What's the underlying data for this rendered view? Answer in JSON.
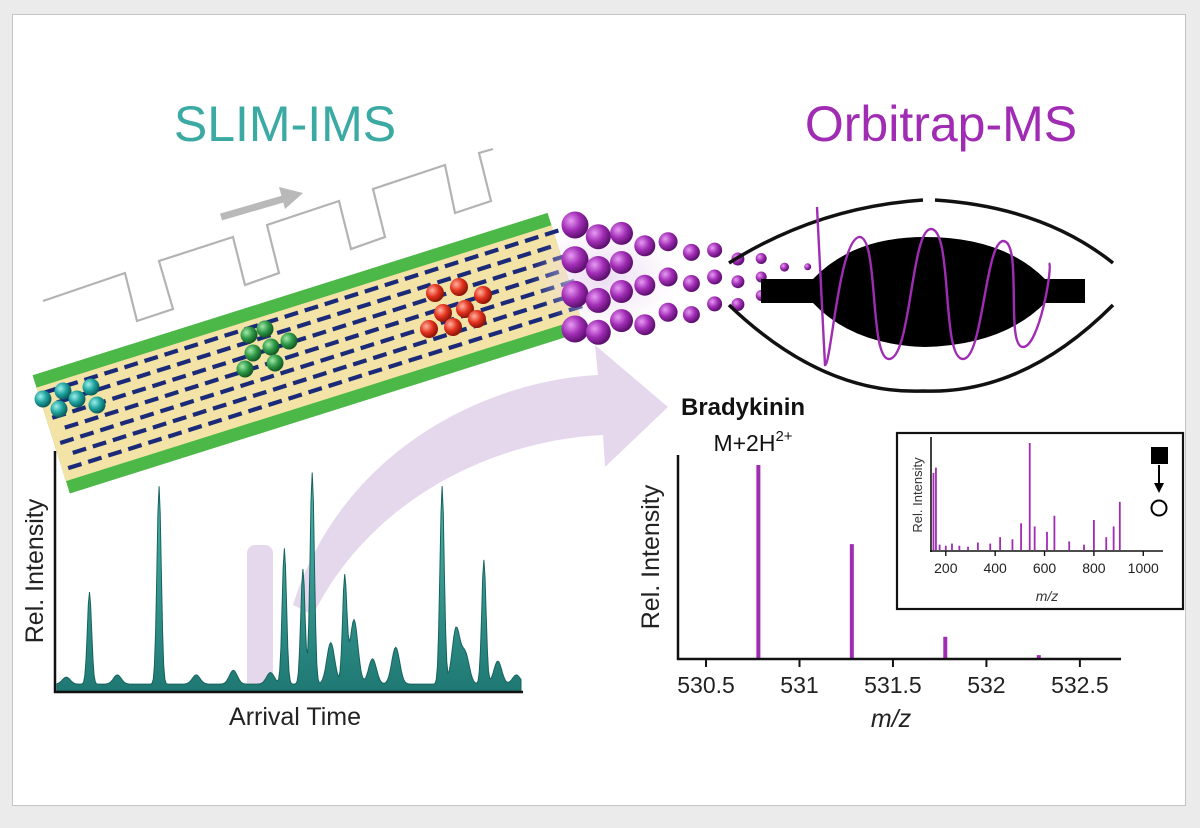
{
  "titles": {
    "left": "SLIM-IMS",
    "right": "Orbitrap-MS"
  },
  "colors": {
    "teal": "#3aaaa3",
    "purple": "#a02cb4",
    "green_rail": "#4cb848",
    "yellow_track": "#f3e3a6",
    "electrode": "#1a2a78",
    "ion_teal": "#22a6a4",
    "ion_green": "#2e9a48",
    "ion_red": "#e4331f",
    "highlight": "#e6d8ec"
  },
  "imsChart": {
    "ylabel": "Rel. Intensity",
    "xlabel": "Arrival Time"
  },
  "massSpectrum": {
    "analyte": "Bradykinin",
    "ion_base": "M+2H",
    "ion_charge": "2+",
    "ylabel": "Rel. Intensity",
    "xlabel": "m/z"
  },
  "inset": {
    "ylabel": "Rel. Intensity",
    "xlabel": "m/z"
  },
  "chart_data": [
    {
      "type": "line",
      "xlabel": "Arrival Time",
      "ylabel": "Rel. Intensity",
      "x": [
        0.02,
        0.07,
        0.13,
        0.22,
        0.3,
        0.38,
        0.46,
        0.49,
        0.53,
        0.55,
        0.59,
        0.62,
        0.64,
        0.68,
        0.73,
        0.83,
        0.86,
        0.88,
        0.92,
        0.95,
        0.99
      ],
      "series": [
        {
          "values": [
            0.03,
            0.4,
            0.04,
            0.86,
            0.04,
            0.06,
            0.05,
            0.59,
            0.5,
            0.92,
            0.18,
            0.46,
            0.28,
            0.11,
            0.16,
            0.86,
            0.24,
            0.13,
            0.54,
            0.1,
            0.04
          ]
        }
      ]
    },
    {
      "type": "bar",
      "xlabel": "m/z",
      "ylabel": "Rel. Intensity",
      "xlim": [
        530.35,
        532.72
      ],
      "xticks": [
        530.5,
        531,
        531.5,
        532,
        532.5
      ],
      "x": [
        530.78,
        531.28,
        531.78,
        532.28
      ],
      "values": [
        1.0,
        0.59,
        0.11,
        0.015
      ]
    },
    {
      "type": "bar",
      "xlabel": "m/z",
      "ylabel": "Rel. Intensity",
      "xlim": [
        140,
        1080
      ],
      "xticks": [
        200,
        400,
        600,
        800,
        1000
      ],
      "x": [
        150,
        160,
        175,
        200,
        225,
        255,
        290,
        330,
        380,
        420,
        470,
        505,
        540,
        560,
        610,
        640,
        700,
        760,
        800,
        850,
        880,
        905
      ],
      "values": [
        0.72,
        0.77,
        0.05,
        0.04,
        0.06,
        0.04,
        0.03,
        0.07,
        0.06,
        0.12,
        0.1,
        0.25,
        1.0,
        0.22,
        0.17,
        0.32,
        0.08,
        0.05,
        0.28,
        0.12,
        0.22,
        0.45
      ]
    }
  ]
}
